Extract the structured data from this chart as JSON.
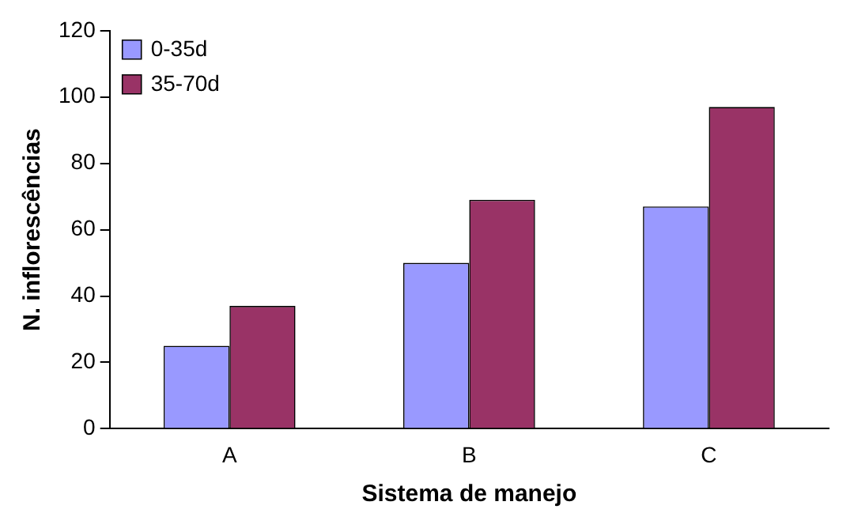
{
  "chart_data": {
    "type": "bar",
    "xlabel": "Sistema de manejo",
    "ylabel": "N. inflorescências",
    "categories": [
      "A",
      "B",
      "C"
    ],
    "series": [
      {
        "name": "0-35d",
        "color": "#9999ff",
        "values": [
          25,
          50,
          67
        ]
      },
      {
        "name": "35-70d",
        "color": "#993366",
        "values": [
          37,
          69,
          97
        ]
      }
    ],
    "ylim": [
      0,
      120
    ],
    "yticks": [
      0,
      20,
      40,
      60,
      80,
      100,
      120
    ],
    "grid": false,
    "legend": "top left"
  }
}
